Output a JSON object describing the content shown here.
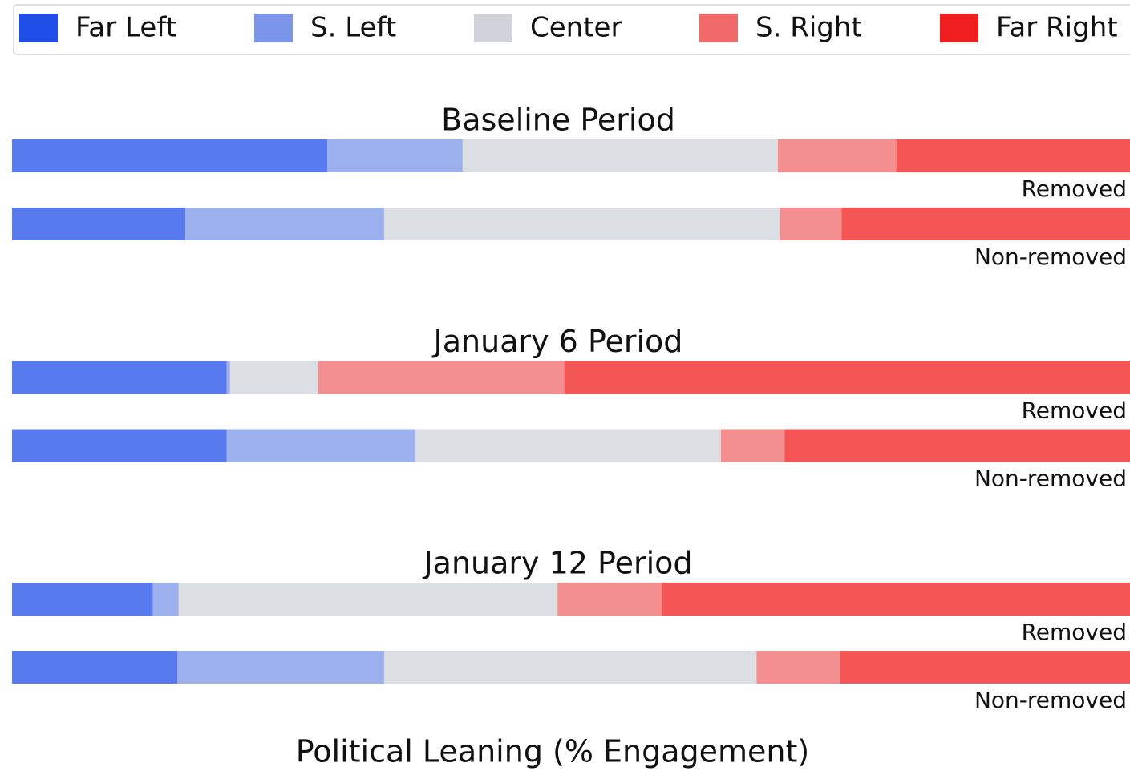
{
  "chart_data": {
    "type": "bar",
    "orientation": "horizontal",
    "stacked": true,
    "xlabel": "Political Leaning (% Engagement)",
    "xlim": [
      0,
      100
    ],
    "series": [
      {
        "name": "Far Left",
        "color": "#1f4de8"
      },
      {
        "name": "S. Left",
        "color": "#7b96e8"
      },
      {
        "name": "Center",
        "color": "#cfd3d9"
      },
      {
        "name": "S. Right",
        "color": "#f06a6a"
      },
      {
        "name": "Far Right",
        "color": "#f01e1e"
      }
    ],
    "panels": [
      {
        "title": "Baseline Period",
        "categories": [
          "Removed",
          "Non-removed"
        ],
        "values": [
          [
            28.2,
            15.5
          ],
          [
            12.1,
            17.8
          ],
          [
            28.2,
            35.4
          ],
          [
            10.6,
            5.5
          ],
          [
            20.9,
            25.8
          ]
        ]
      },
      {
        "title": "January 6 Period",
        "categories": [
          "Removed",
          "Non-removed"
        ],
        "values": [
          [
            19.2,
            19.2
          ],
          [
            0.3,
            16.9
          ],
          [
            7.9,
            27.3
          ],
          [
            22.0,
            5.7
          ],
          [
            50.6,
            30.9
          ]
        ]
      },
      {
        "title": "January 12 Period",
        "categories": [
          "Removed",
          "Non-removed"
        ],
        "values": [
          [
            12.6,
            14.8
          ],
          [
            2.3,
            18.5
          ],
          [
            33.9,
            33.3
          ],
          [
            9.3,
            7.5
          ],
          [
            41.9,
            25.9
          ]
        ]
      }
    ]
  }
}
